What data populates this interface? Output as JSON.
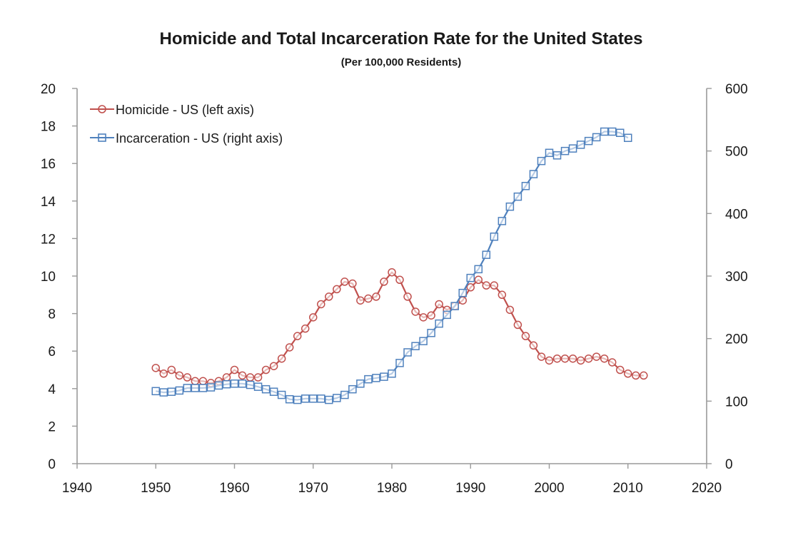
{
  "chart_data": {
    "type": "line",
    "title": "Homicide and Total Incarceration Rate for the United States",
    "subtitle": "(Per 100,000 Residents)",
    "xlim": [
      1940,
      2020
    ],
    "x_ticks": [
      "1940",
      "1950",
      "1960",
      "1970",
      "1980",
      "1990",
      "2000",
      "2010",
      "2020"
    ],
    "ylim_left": [
      0,
      20
    ],
    "y_left_ticks": [
      "0",
      "2",
      "4",
      "6",
      "8",
      "10",
      "12",
      "14",
      "16",
      "18",
      "20"
    ],
    "ylim_right": [
      0,
      600
    ],
    "y_right_ticks": [
      "0",
      "100",
      "200",
      "300",
      "400",
      "500",
      "600"
    ],
    "grid": false,
    "legend_position": "top-left",
    "series": [
      {
        "name": "Homicide - US (left axis)",
        "axis": "left",
        "color": "#c0504d",
        "marker": "circle",
        "x": [
          1950,
          1951,
          1952,
          1953,
          1954,
          1955,
          1956,
          1957,
          1958,
          1959,
          1960,
          1961,
          1962,
          1963,
          1964,
          1965,
          1966,
          1967,
          1968,
          1969,
          1970,
          1971,
          1972,
          1973,
          1974,
          1975,
          1976,
          1977,
          1978,
          1979,
          1980,
          1981,
          1982,
          1983,
          1984,
          1985,
          1986,
          1987,
          1988,
          1989,
          1990,
          1991,
          1992,
          1993,
          1994,
          1995,
          1996,
          1997,
          1998,
          1999,
          2000,
          2001,
          2002,
          2003,
          2004,
          2005,
          2006,
          2007,
          2008,
          2009,
          2010,
          2011,
          2012
        ],
        "values": [
          5.1,
          4.8,
          5.0,
          4.7,
          4.6,
          4.4,
          4.4,
          4.3,
          4.4,
          4.6,
          5.0,
          4.7,
          4.6,
          4.6,
          5.0,
          5.2,
          5.6,
          6.2,
          6.8,
          7.2,
          7.8,
          8.5,
          8.9,
          9.3,
          9.7,
          9.6,
          8.7,
          8.8,
          8.9,
          9.7,
          10.2,
          9.8,
          8.9,
          8.1,
          7.8,
          7.9,
          8.5,
          8.2,
          8.4,
          8.7,
          9.4,
          9.8,
          9.5,
          9.5,
          9.0,
          8.2,
          7.4,
          6.8,
          6.3,
          5.7,
          5.5,
          5.6,
          5.6,
          5.6,
          5.5,
          5.6,
          5.7,
          5.6,
          5.4,
          5.0,
          4.8,
          4.7,
          4.7
        ]
      },
      {
        "name": "Incarceration - US (right axis)",
        "axis": "right",
        "color": "#4f81bd",
        "marker": "square",
        "x": [
          1950,
          1951,
          1952,
          1953,
          1954,
          1955,
          1956,
          1957,
          1958,
          1959,
          1960,
          1961,
          1962,
          1963,
          1964,
          1965,
          1966,
          1967,
          1968,
          1969,
          1970,
          1971,
          1972,
          1973,
          1974,
          1975,
          1976,
          1977,
          1978,
          1979,
          1980,
          1981,
          1982,
          1983,
          1984,
          1985,
          1986,
          1987,
          1988,
          1989,
          1990,
          1991,
          1992,
          1993,
          1994,
          1995,
          1996,
          1997,
          1998,
          1999,
          2000,
          2001,
          2002,
          2003,
          2004,
          2005,
          2006,
          2007,
          2008,
          2009,
          2010
        ],
        "values": [
          116,
          114,
          115,
          117,
          121,
          121,
          121,
          122,
          125,
          127,
          128,
          128,
          126,
          123,
          119,
          115,
          110,
          103,
          102,
          104,
          104,
          104,
          102,
          105,
          110,
          119,
          128,
          135,
          137,
          139,
          144,
          161,
          178,
          188,
          196,
          209,
          224,
          238,
          252,
          273,
          297,
          311,
          334,
          363,
          388,
          411,
          427,
          444,
          463,
          484,
          497,
          493,
          500,
          504,
          510,
          516,
          522,
          531,
          531,
          529,
          521
        ]
      }
    ]
  }
}
